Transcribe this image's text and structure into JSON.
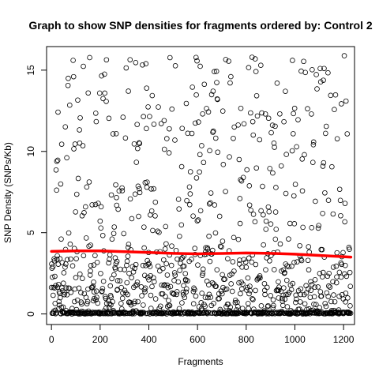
{
  "chart_data": {
    "type": "scatter",
    "title": "Graph to show SNP densities for fragments ordered by: Control 2",
    "xlabel": "Fragments",
    "ylabel": "SNP Density (SNPs/Kb)",
    "xlim": [
      -20,
      1245
    ],
    "ylim": [
      -0.65,
      16.45
    ],
    "x_ticks": [
      0,
      200,
      400,
      600,
      800,
      1000,
      1200
    ],
    "y_ticks": [
      0,
      5,
      10,
      15
    ],
    "point_count": 1230,
    "point_style": "open-circle",
    "grid": false,
    "legend": "none",
    "trend_line": {
      "color": "#ff0000",
      "points": [
        {
          "x": 0,
          "y": 3.85
        },
        {
          "x": 100,
          "y": 3.88
        },
        {
          "x": 200,
          "y": 3.88
        },
        {
          "x": 300,
          "y": 3.83
        },
        {
          "x": 400,
          "y": 3.78
        },
        {
          "x": 500,
          "y": 3.73
        },
        {
          "x": 600,
          "y": 3.7
        },
        {
          "x": 700,
          "y": 3.72
        },
        {
          "x": 800,
          "y": 3.75
        },
        {
          "x": 900,
          "y": 3.73
        },
        {
          "x": 1000,
          "y": 3.68
        },
        {
          "x": 1100,
          "y": 3.6
        },
        {
          "x": 1200,
          "y": 3.52
        },
        {
          "x": 1230,
          "y": 3.5
        }
      ]
    }
  },
  "colors": {
    "points": "#000000",
    "trend": "#ff0000",
    "background": "#ffffff"
  }
}
